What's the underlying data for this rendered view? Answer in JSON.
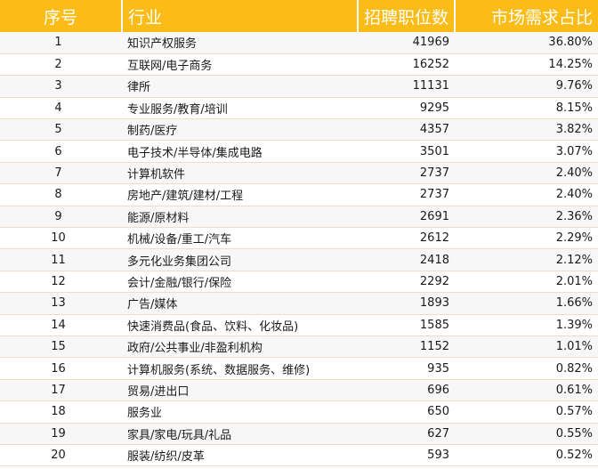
{
  "headers": {
    "rank": "序号",
    "industry": "行业",
    "positions": "招聘职位数",
    "share": "市场需求占比"
  },
  "rows": [
    {
      "rank": "1",
      "industry": "知识产权服务",
      "positions": "41969",
      "share": "36.80%"
    },
    {
      "rank": "2",
      "industry": "互联网/电子商务",
      "positions": "16252",
      "share": "14.25%"
    },
    {
      "rank": "3",
      "industry": "律所",
      "positions": "11131",
      "share": "9.76%"
    },
    {
      "rank": "4",
      "industry": "专业服务/教育/培训",
      "positions": "9295",
      "share": "8.15%"
    },
    {
      "rank": "5",
      "industry": "制药/医疗",
      "positions": "4357",
      "share": "3.82%"
    },
    {
      "rank": "6",
      "industry": "电子技术/半导体/集成电路",
      "positions": "3501",
      "share": "3.07%"
    },
    {
      "rank": "7",
      "industry": "计算机软件",
      "positions": "2737",
      "share": "2.40%"
    },
    {
      "rank": "8",
      "industry": "房地产/建筑/建材/工程",
      "positions": "2737",
      "share": "2.40%"
    },
    {
      "rank": "9",
      "industry": "能源/原材料",
      "positions": "2691",
      "share": "2.36%"
    },
    {
      "rank": "10",
      "industry": "机械/设备/重工/汽车",
      "positions": "2612",
      "share": "2.29%"
    },
    {
      "rank": "11",
      "industry": "多元化业务集团公司",
      "positions": "2418",
      "share": "2.12%"
    },
    {
      "rank": "12",
      "industry": "会计/金融/银行/保险",
      "positions": "2292",
      "share": "2.01%"
    },
    {
      "rank": "13",
      "industry": "广告/媒体",
      "positions": "1893",
      "share": "1.66%"
    },
    {
      "rank": "14",
      "industry": "快速消费品(食品、饮料、化妆品)",
      "positions": "1585",
      "share": "1.39%"
    },
    {
      "rank": "15",
      "industry": "政府/公共事业/非盈利机构",
      "positions": "1152",
      "share": "1.01%"
    },
    {
      "rank": "16",
      "industry": "计算机服务(系统、数据服务、维修)",
      "positions": "935",
      "share": "0.82%"
    },
    {
      "rank": "17",
      "industry": "贸易/进出口",
      "positions": "696",
      "share": "0.61%"
    },
    {
      "rank": "18",
      "industry": "服务业",
      "positions": "650",
      "share": "0.57%"
    },
    {
      "rank": "19",
      "industry": "家具/家电/玩具/礼品",
      "positions": "627",
      "share": "0.55%"
    },
    {
      "rank": "20",
      "industry": "服装/纺织/皮革",
      "positions": "593",
      "share": "0.52%"
    }
  ]
}
